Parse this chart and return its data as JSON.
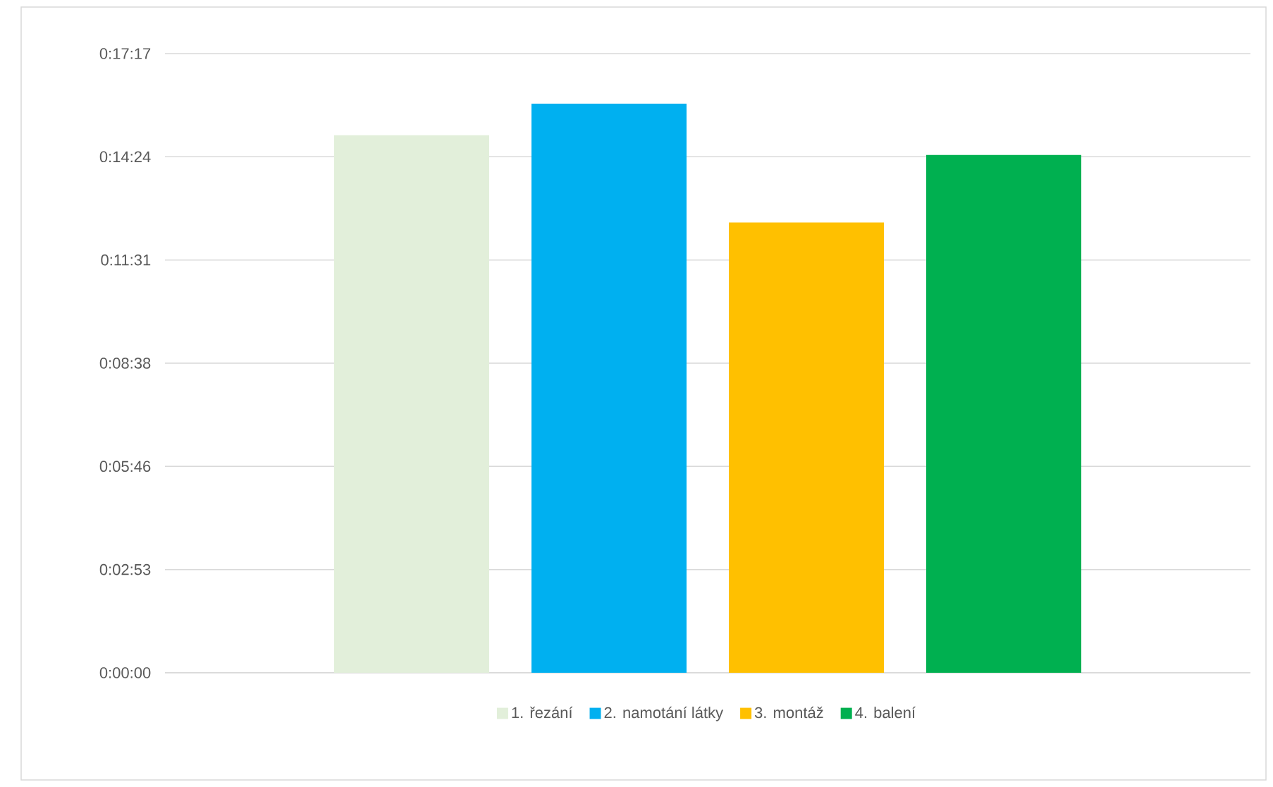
{
  "chart_data": {
    "type": "bar",
    "categories": [
      null
    ],
    "series": [
      {
        "name": "1. řezání",
        "color": "#e2efda",
        "values": [
          900
        ]
      },
      {
        "name": "2. namotání látky",
        "color": "#00b0f0",
        "values": [
          953
        ]
      },
      {
        "name": "3. montáž",
        "color": "#ffc000",
        "values": [
          754
        ]
      },
      {
        "name": "4. balení",
        "color": "#00b050",
        "values": [
          867
        ]
      }
    ],
    "ylim": [
      0,
      1036.8
    ],
    "yticks": [
      {
        "value": 0,
        "label": "0:00:00"
      },
      {
        "value": 172.8,
        "label": "0:02:53"
      },
      {
        "value": 345.6,
        "label": "0:05:46"
      },
      {
        "value": 518.4,
        "label": "0:08:38"
      },
      {
        "value": 691.2,
        "label": "0:11:31"
      },
      {
        "value": 864,
        "label": "0:14:24"
      },
      {
        "value": 1036.8,
        "label": "0:17:17"
      }
    ],
    "grid": "y",
    "legend": "bottom"
  }
}
